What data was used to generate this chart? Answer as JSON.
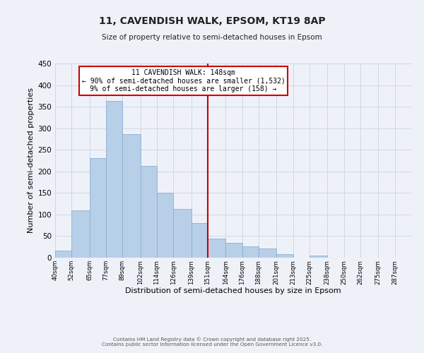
{
  "title": "11, CAVENDISH WALK, EPSOM, KT19 8AP",
  "subtitle": "Size of property relative to semi-detached houses in Epsom",
  "xlabel": "Distribution of semi-detached houses by size in Epsom",
  "ylabel": "Number of semi-detached properties",
  "bin_labels": [
    "40sqm",
    "52sqm",
    "65sqm",
    "77sqm",
    "89sqm",
    "102sqm",
    "114sqm",
    "126sqm",
    "139sqm",
    "151sqm",
    "164sqm",
    "176sqm",
    "188sqm",
    "201sqm",
    "213sqm",
    "225sqm",
    "238sqm",
    "250sqm",
    "262sqm",
    "275sqm",
    "287sqm"
  ],
  "bin_edges": [
    40,
    52,
    65,
    77,
    89,
    102,
    114,
    126,
    139,
    151,
    164,
    176,
    188,
    201,
    213,
    225,
    238,
    250,
    262,
    275,
    287,
    299
  ],
  "bar_heights": [
    17,
    109,
    231,
    363,
    286,
    213,
    150,
    113,
    80,
    45,
    35,
    26,
    21,
    9,
    0,
    5,
    0,
    0,
    0,
    0,
    0
  ],
  "bar_color": "#b8cfe8",
  "bar_edgecolor": "#8ab0d4",
  "vline_x": 151,
  "vline_color": "#cc0000",
  "annotation_title": "11 CAVENDISH WALK: 148sqm",
  "annotation_line1": "← 90% of semi-detached houses are smaller (1,532)",
  "annotation_line2": "9% of semi-detached houses are larger (158) →",
  "annotation_box_color": "#cc0000",
  "ylim": [
    0,
    450
  ],
  "yticks": [
    0,
    50,
    100,
    150,
    200,
    250,
    300,
    350,
    400,
    450
  ],
  "grid_color": "#ccd8e8",
  "background_color": "#eef2f8",
  "footer1": "Contains HM Land Registry data © Crown copyright and database right 2025.",
  "footer2": "Contains public sector information licensed under the Open Government Licence v3.0."
}
